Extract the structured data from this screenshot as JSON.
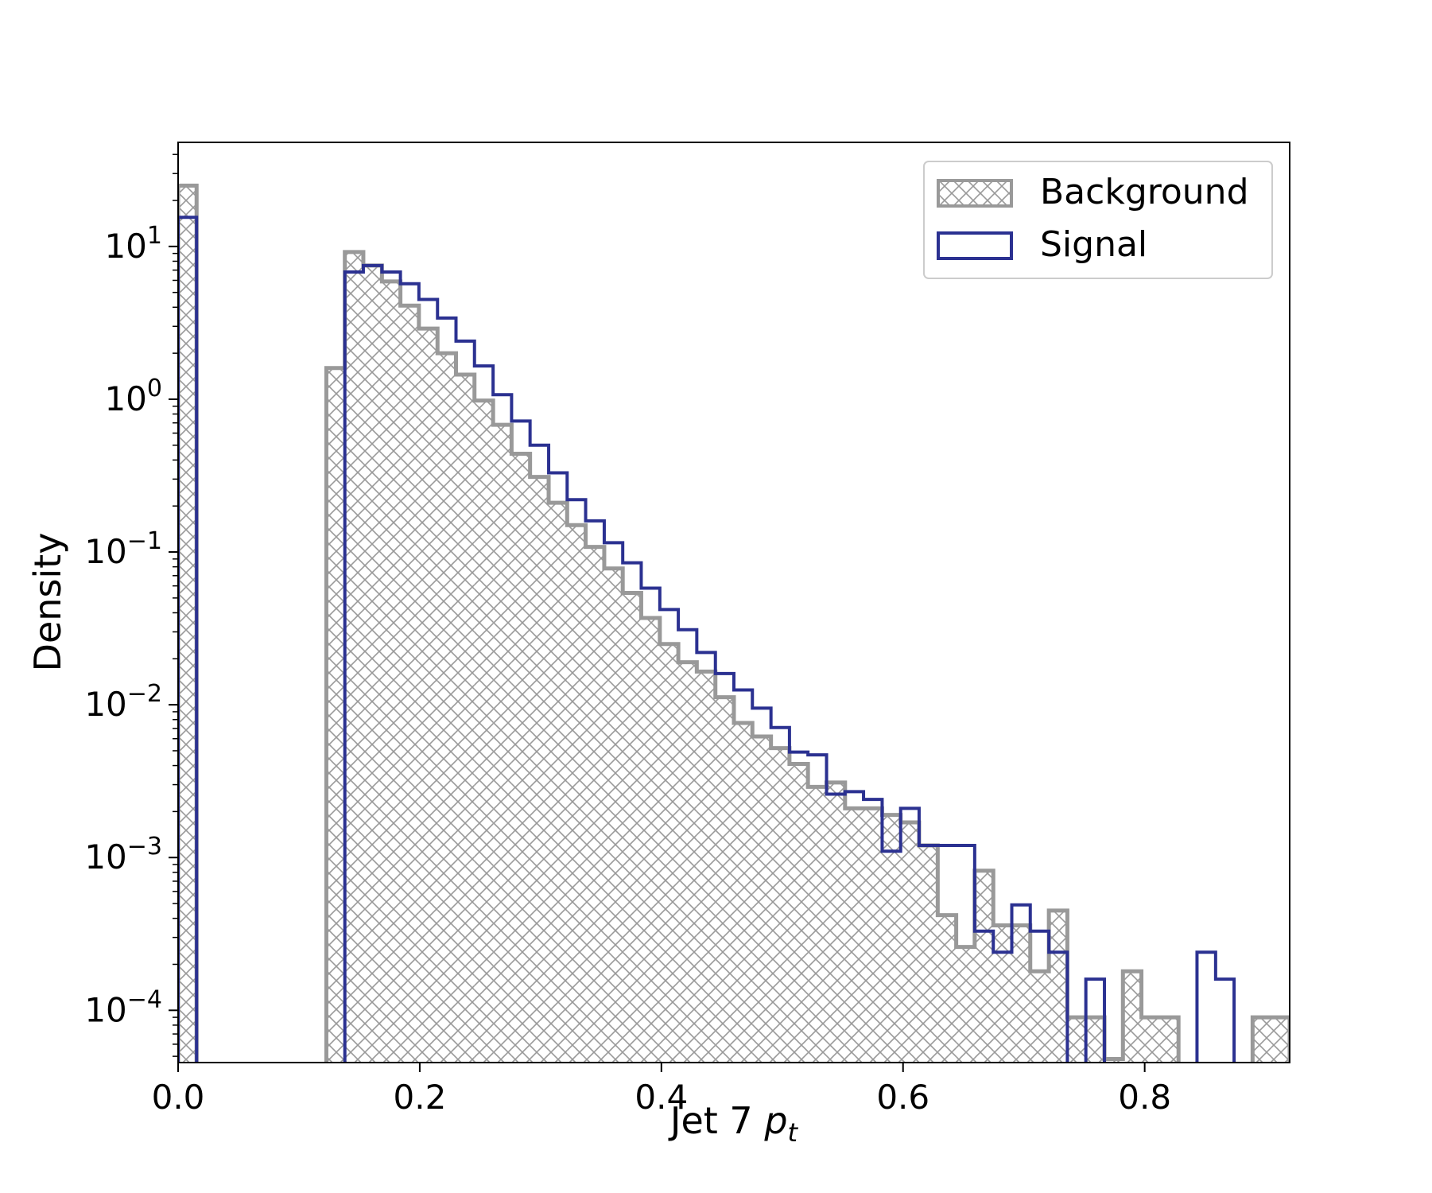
{
  "chart_data": {
    "type": "histogram",
    "xlabel_main": "Jet 7 ",
    "xlabel_italic": "p",
    "xlabel_sub": "t",
    "ylabel": "Density",
    "y_scale": "log",
    "xlim": [
      0.0,
      0.92
    ],
    "ylim": [
      4.55e-05,
      48
    ],
    "x_ticks": [
      "0.0",
      "0.2",
      "0.4",
      "0.6",
      "0.8"
    ],
    "x_tick_values": [
      0.0,
      0.2,
      0.4,
      0.6,
      0.8
    ],
    "y_ticks": [
      {
        "exp": 1,
        "base": "10",
        "sup": "1"
      },
      {
        "exp": 0,
        "base": "10",
        "sup": "0"
      },
      {
        "exp": -1,
        "base": "10",
        "sup": "−1"
      },
      {
        "exp": -2,
        "base": "10",
        "sup": "−2"
      },
      {
        "exp": -3,
        "base": "10",
        "sup": "−3"
      },
      {
        "exp": -4,
        "base": "10",
        "sup": "−4"
      }
    ],
    "legend_position": "top-right",
    "bin_edges": [
      0.0,
      0.0153,
      0.0307,
      0.046,
      0.0613,
      0.0767,
      0.092,
      0.1073,
      0.1227,
      0.138,
      0.1533,
      0.1687,
      0.184,
      0.1993,
      0.2147,
      0.23,
      0.2453,
      0.2607,
      0.276,
      0.2913,
      0.3067,
      0.322,
      0.3373,
      0.3527,
      0.368,
      0.3833,
      0.3987,
      0.414,
      0.4293,
      0.4447,
      0.46,
      0.4753,
      0.4907,
      0.506,
      0.5213,
      0.5367,
      0.552,
      0.5673,
      0.5827,
      0.598,
      0.6133,
      0.6287,
      0.644,
      0.6593,
      0.6747,
      0.69,
      0.7053,
      0.7207,
      0.736,
      0.7513,
      0.7667,
      0.782,
      0.7973,
      0.8127,
      0.828,
      0.8433,
      0.8587,
      0.874,
      0.8893,
      0.9047,
      0.92
    ],
    "series": [
      {
        "name": "Background",
        "style": "hatched",
        "color": "#999999",
        "values": [
          25,
          0,
          0,
          0,
          0,
          0,
          0,
          0,
          1.6,
          9.2,
          7.5,
          5.9,
          4.1,
          2.9,
          2.0,
          1.45,
          0.98,
          0.68,
          0.44,
          0.31,
          0.21,
          0.15,
          0.108,
          0.078,
          0.054,
          0.037,
          0.025,
          0.019,
          0.0165,
          0.0112,
          0.0076,
          0.0062,
          0.0052,
          0.0041,
          0.0029,
          0.0031,
          0.0021,
          0.0021,
          0.0019,
          0.0017,
          0.0012,
          0.00042,
          0.00026,
          0.00082,
          0.00036,
          0.00036,
          0.00018,
          0.00045,
          9e-05,
          9e-05,
          4.8e-05,
          0.00018,
          9e-05,
          9e-05,
          0,
          0,
          0,
          0,
          9e-05,
          9e-05
        ]
      },
      {
        "name": "Signal",
        "style": "step",
        "color": "#2b3191",
        "values": [
          15.5,
          0,
          0,
          0,
          0,
          0,
          0,
          0,
          0,
          6.8,
          7.5,
          6.8,
          5.7,
          4.5,
          3.4,
          2.4,
          1.65,
          1.07,
          0.72,
          0.5,
          0.33,
          0.22,
          0.16,
          0.115,
          0.085,
          0.058,
          0.042,
          0.031,
          0.022,
          0.016,
          0.0125,
          0.0095,
          0.0071,
          0.0049,
          0.0047,
          0.0026,
          0.0027,
          0.0024,
          0.0011,
          0.0021,
          0.0012,
          0.0012,
          0.0012,
          0.00033,
          0.00024,
          0.00049,
          0.00033,
          0.00024,
          0,
          0.00016,
          0,
          0,
          0,
          0,
          0,
          0.00024,
          0.00016,
          0,
          0,
          0
        ]
      }
    ]
  }
}
